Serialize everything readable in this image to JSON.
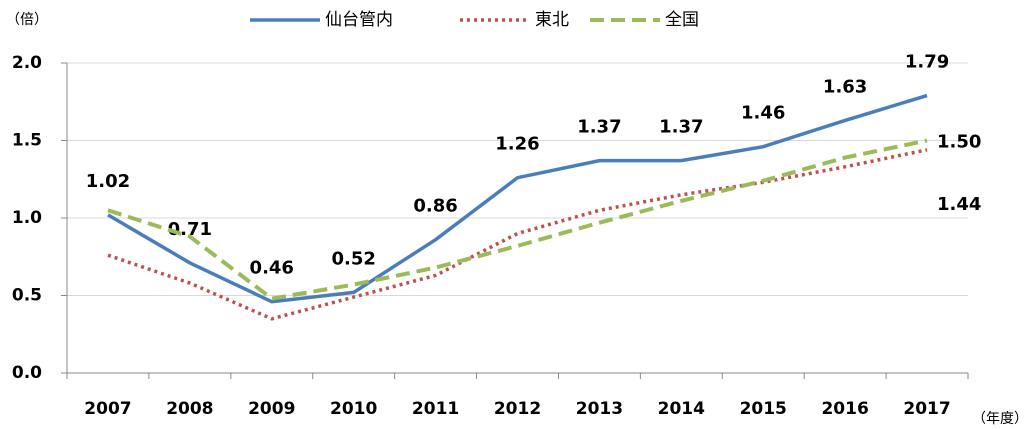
{
  "chart_data": {
    "type": "line",
    "y_unit_label": "（倍）",
    "x_unit_label": "（年度）",
    "categories": [
      "2007",
      "2008",
      "2009",
      "2010",
      "2011",
      "2012",
      "2013",
      "2014",
      "2015",
      "2016",
      "2017"
    ],
    "series": [
      {
        "name": "仙台管内",
        "color": "#4a7ebb",
        "dash": "solid",
        "values": [
          1.02,
          0.71,
          0.46,
          0.52,
          0.86,
          1.26,
          1.37,
          1.37,
          1.46,
          1.63,
          1.79
        ],
        "value_labels": [
          "1.02",
          "0.71",
          "0.46",
          "0.52",
          "0.86",
          "1.26",
          "1.37",
          "1.37",
          "1.46",
          "1.63",
          "1.79"
        ]
      },
      {
        "name": "東北",
        "color": "#c0504d",
        "dash": "dotted",
        "values": [
          0.76,
          0.58,
          0.35,
          0.49,
          0.63,
          0.9,
          1.05,
          1.15,
          1.23,
          1.33,
          1.44
        ],
        "value_labels": [
          null,
          null,
          null,
          null,
          null,
          null,
          null,
          null,
          null,
          null,
          "1.44"
        ]
      },
      {
        "name": "全国",
        "color": "#9bbb59",
        "dash": "dashed",
        "values": [
          1.05,
          0.88,
          0.48,
          0.57,
          0.68,
          0.82,
          0.97,
          1.11,
          1.24,
          1.39,
          1.5
        ],
        "value_labels": [
          null,
          null,
          null,
          null,
          null,
          null,
          null,
          null,
          null,
          null,
          "1.50"
        ]
      }
    ],
    "ylim": [
      0,
      2
    ],
    "yticks": [
      {
        "value": 0,
        "label": "0.0"
      },
      {
        "value": 0.5,
        "label": "0.5"
      },
      {
        "value": 1,
        "label": "1.0"
      },
      {
        "value": 1.5,
        "label": "1.5"
      },
      {
        "value": 2,
        "label": "2.0"
      }
    ],
    "grid": true
  }
}
